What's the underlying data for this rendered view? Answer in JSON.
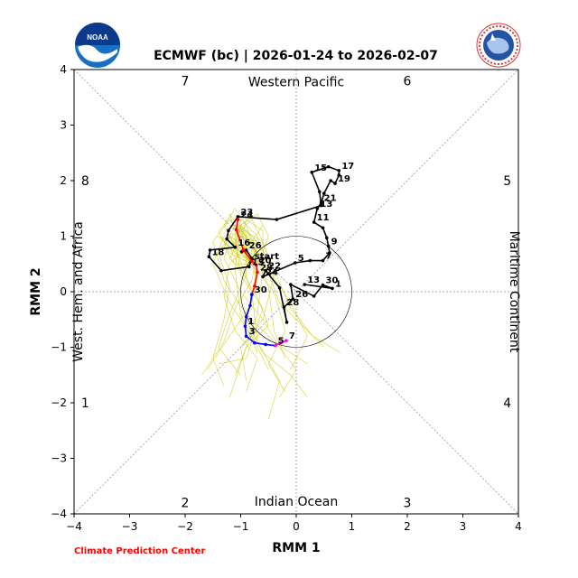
{
  "chart_data": {
    "type": "line",
    "title": "ECMWF (bc) | 2026-01-24 to 2026-02-07",
    "xlabel": "RMM 1",
    "ylabel": "RMM 2",
    "xlim": [
      -4,
      4
    ],
    "ylim": [
      -4,
      4
    ],
    "x_ticks": [
      "−4",
      "−3",
      "−2",
      "−1",
      "0",
      "1",
      "2",
      "3",
      "4"
    ],
    "y_ticks": [
      "−4",
      "−3",
      "−2",
      "−1",
      "0",
      "1",
      "2",
      "3",
      "4"
    ],
    "grid": "dotted diagonals and zero lines",
    "regions": {
      "top": "Western Pacific",
      "bottom": "Indian Ocean",
      "left": "West. Hem. and Africa",
      "right": "Maritime Continent"
    },
    "phases": [
      {
        "label": "7",
        "x": -2,
        "y": 3.8
      },
      {
        "label": "6",
        "x": 2,
        "y": 3.8
      },
      {
        "label": "8",
        "x": -3.8,
        "y": 2
      },
      {
        "label": "5",
        "x": 3.8,
        "y": 2
      },
      {
        "label": "1",
        "x": -3.8,
        "y": -2
      },
      {
        "label": "4",
        "x": 3.8,
        "y": -2
      },
      {
        "label": "2",
        "x": -2,
        "y": -3.8
      },
      {
        "label": "3",
        "x": 2,
        "y": -3.8
      }
    ],
    "series": [
      {
        "color": "#000000",
        "points": [
          {
            "x": 0.15,
            "y": 0.13,
            "label": "13"
          },
          {
            "x": 0.65,
            "y": 0.06,
            "label": "1"
          },
          {
            "x": 0.48,
            "y": 0.12,
            "label": "30"
          },
          {
            "x": 0.32,
            "y": -0.08
          },
          {
            "x": -0.1,
            "y": 0.13
          },
          {
            "x": -0.06,
            "y": -0.13,
            "label": "26"
          },
          {
            "x": -0.22,
            "y": -0.28,
            "label": "28"
          },
          {
            "x": -0.17,
            "y": -0.55
          },
          {
            "x": -0.3,
            "y": 0.07
          },
          {
            "x": -0.55,
            "y": 0.38,
            "label": "22"
          },
          {
            "x": -0.6,
            "y": 0.27,
            "label": "24"
          },
          {
            "x": -0.02,
            "y": 0.52,
            "label": "5"
          },
          {
            "x": 0.25,
            "y": 0.56
          },
          {
            "x": 0.48,
            "y": 0.56,
            "label": "7"
          },
          {
            "x": 0.6,
            "y": 0.7
          },
          {
            "x": 0.58,
            "y": 0.82,
            "label": "9"
          },
          {
            "x": 0.55,
            "y": 0.97
          },
          {
            "x": 0.48,
            "y": 1.15
          },
          {
            "x": 0.32,
            "y": 1.25,
            "label": "11"
          },
          {
            "x": 0.38,
            "y": 1.5,
            "label": "13"
          },
          {
            "x": 0.45,
            "y": 1.6,
            "label": "21"
          },
          {
            "x": 0.5,
            "y": 1.77
          },
          {
            "x": 0.62,
            "y": 2.0
          },
          {
            "x": 0.7,
            "y": 1.95,
            "label": "19"
          },
          {
            "x": 0.77,
            "y": 2.1
          },
          {
            "x": 0.77,
            "y": 2.18,
            "label": "17"
          },
          {
            "x": 0.58,
            "y": 2.25
          },
          {
            "x": 0.28,
            "y": 2.15,
            "label": "15"
          },
          {
            "x": 0.42,
            "y": 1.8
          },
          {
            "x": 0.45,
            "y": 1.55
          },
          {
            "x": -0.35,
            "y": 1.3
          },
          {
            "x": -1.05,
            "y": 1.35,
            "label": "23"
          },
          {
            "x": -1.22,
            "y": 1.1
          },
          {
            "x": -1.25,
            "y": 0.95
          },
          {
            "x": -1.1,
            "y": 0.8,
            "label": "16"
          },
          {
            "x": -1.55,
            "y": 0.75
          },
          {
            "x": -1.57,
            "y": 0.63,
            "label": "18"
          },
          {
            "x": -1.35,
            "y": 0.38
          },
          {
            "x": -0.85,
            "y": 0.45,
            "label": "15"
          },
          {
            "x": -0.8,
            "y": 0.6
          },
          {
            "x": -0.9,
            "y": 0.75,
            "label": "26"
          },
          {
            "x": -0.98,
            "y": 0.72
          }
        ]
      },
      {
        "color": "#ff0000",
        "points": [
          {
            "x": -1.05,
            "y": 1.3,
            "label": "24"
          },
          {
            "x": -1.08,
            "y": 1.12
          },
          {
            "x": -0.95,
            "y": 0.75
          },
          {
            "x": -0.8,
            "y": 0.55,
            "label": "start"
          },
          {
            "x": -0.72,
            "y": 0.48,
            "label": "20"
          },
          {
            "x": -0.7,
            "y": 0.35,
            "label": "28"
          },
          {
            "x": -0.75,
            "y": 0.1
          },
          {
            "x": -0.8,
            "y": -0.05,
            "label": "30"
          }
        ]
      },
      {
        "color": "#0000ff",
        "points": [
          {
            "x": -0.8,
            "y": -0.05
          },
          {
            "x": -0.83,
            "y": -0.25
          },
          {
            "x": -0.9,
            "y": -0.45
          },
          {
            "x": -0.92,
            "y": -0.62,
            "label": "1"
          },
          {
            "x": -0.9,
            "y": -0.8,
            "label": "3"
          },
          {
            "x": -0.75,
            "y": -0.92
          },
          {
            "x": -0.55,
            "y": -0.95
          },
          {
            "x": -0.38,
            "y": -0.97,
            "label": "5"
          }
        ]
      },
      {
        "color": "#ff00ff",
        "points": [
          {
            "x": -0.38,
            "y": -0.97
          },
          {
            "x": -0.28,
            "y": -0.92
          },
          {
            "x": -0.18,
            "y": -0.88,
            "label": "7"
          }
        ]
      }
    ],
    "ensemble_color": "#c8c800",
    "ensemble": [
      [
        [
          -0.8,
          0.5
        ],
        [
          -1.1,
          0.8
        ],
        [
          -1.3,
          1.2
        ],
        [
          -1.1,
          1.5
        ],
        [
          -0.9,
          1.2
        ],
        [
          -0.7,
          0.6
        ],
        [
          -0.8,
          -0.2
        ],
        [
          -1.2,
          -0.8
        ],
        [
          -1.6,
          -1.4
        ]
      ],
      [
        [
          -0.8,
          0.5
        ],
        [
          -1.0,
          0.9
        ],
        [
          -0.9,
          1.3
        ],
        [
          -0.6,
          1.1
        ],
        [
          -0.6,
          0.4
        ],
        [
          -0.7,
          -0.4
        ],
        [
          -0.9,
          -1.0
        ],
        [
          -1.1,
          -1.5
        ]
      ],
      [
        [
          -0.8,
          0.5
        ],
        [
          -1.2,
          0.7
        ],
        [
          -1.4,
          1.1
        ],
        [
          -1.2,
          1.3
        ],
        [
          -0.8,
          0.8
        ],
        [
          -0.5,
          0.1
        ],
        [
          -0.4,
          -0.7
        ],
        [
          -0.2,
          -1.2
        ]
      ],
      [
        [
          -0.8,
          0.5
        ],
        [
          -0.6,
          0.7
        ],
        [
          -0.5,
          1.0
        ],
        [
          -0.7,
          1.4
        ],
        [
          -1.0,
          1.2
        ],
        [
          -1.1,
          0.4
        ],
        [
          -1.0,
          -0.4
        ],
        [
          -0.7,
          -1.1
        ]
      ],
      [
        [
          -0.8,
          0.5
        ],
        [
          -1.0,
          0.6
        ],
        [
          -1.3,
          0.9
        ],
        [
          -1.0,
          1.1
        ],
        [
          -0.6,
          0.6
        ],
        [
          -0.3,
          -0.2
        ],
        [
          0.1,
          -0.6
        ],
        [
          0.5,
          -1.0
        ]
      ],
      [
        [
          -0.8,
          0.5
        ],
        [
          -0.9,
          0.8
        ],
        [
          -1.2,
          1.0
        ],
        [
          -1.4,
          0.7
        ],
        [
          -1.2,
          0.1
        ],
        [
          -1.3,
          -0.5
        ],
        [
          -1.5,
          -1.2
        ],
        [
          -1.3,
          -1.7
        ]
      ],
      [
        [
          -0.8,
          0.5
        ],
        [
          -0.7,
          0.9
        ],
        [
          -1.0,
          1.2
        ],
        [
          -0.9,
          0.6
        ],
        [
          -0.4,
          0.0
        ],
        [
          -0.2,
          -0.7
        ],
        [
          -0.5,
          -1.3
        ],
        [
          -0.2,
          -1.8
        ]
      ],
      [
        [
          -0.8,
          0.5
        ],
        [
          -1.1,
          0.5
        ],
        [
          -1.3,
          0.8
        ],
        [
          -1.1,
          1.2
        ],
        [
          -0.6,
          0.9
        ],
        [
          -0.4,
          0.3
        ],
        [
          -0.6,
          -0.5
        ],
        [
          -1.0,
          -1.0
        ],
        [
          -0.9,
          -1.6
        ]
      ],
      [
        [
          -0.8,
          0.5
        ],
        [
          -0.9,
          1.0
        ],
        [
          -1.2,
          1.3
        ],
        [
          -1.5,
          0.9
        ],
        [
          -1.3,
          0.2
        ],
        [
          -0.9,
          -0.4
        ],
        [
          -0.4,
          -0.9
        ],
        [
          0.2,
          -1.3
        ]
      ],
      [
        [
          -0.8,
          0.5
        ],
        [
          -0.6,
          0.9
        ],
        [
          -0.8,
          1.3
        ],
        [
          -1.1,
          1.0
        ],
        [
          -1.0,
          0.3
        ],
        [
          -0.6,
          -0.3
        ],
        [
          -0.9,
          -1.2
        ],
        [
          -1.4,
          -1.3
        ]
      ],
      [
        [
          -0.8,
          0.5
        ],
        [
          -1.0,
          0.7
        ],
        [
          -1.2,
          1.0
        ],
        [
          -0.9,
          0.8
        ],
        [
          -0.7,
          0.2
        ],
        [
          -0.9,
          -0.5
        ],
        [
          -0.6,
          -1.1
        ],
        [
          -0.1,
          -1.5
        ],
        [
          0.2,
          -1.9
        ]
      ],
      [
        [
          -0.8,
          0.5
        ],
        [
          -0.7,
          0.8
        ],
        [
          -0.9,
          1.1
        ],
        [
          -1.3,
          1.0
        ],
        [
          -1.5,
          0.5
        ],
        [
          -1.2,
          -0.2
        ],
        [
          -0.8,
          -0.8
        ],
        [
          -0.5,
          -1.4
        ]
      ],
      [
        [
          -0.8,
          0.5
        ],
        [
          -1.0,
          0.4
        ],
        [
          -1.2,
          0.6
        ],
        [
          -1.0,
          1.0
        ],
        [
          -0.7,
          0.9
        ],
        [
          -0.4,
          0.4
        ],
        [
          -0.1,
          -0.3
        ],
        [
          0.3,
          -0.8
        ],
        [
          0.8,
          -1.1
        ]
      ],
      [
        [
          -0.8,
          0.5
        ],
        [
          -0.9,
          0.7
        ],
        [
          -1.1,
          1.1
        ],
        [
          -1.2,
          1.4
        ],
        [
          -0.9,
          1.0
        ],
        [
          -0.9,
          0.3
        ],
        [
          -1.2,
          -0.4
        ],
        [
          -1.4,
          -1.0
        ],
        [
          -1.0,
          -1.5
        ]
      ],
      [
        [
          -0.8,
          0.5
        ],
        [
          -0.6,
          0.6
        ],
        [
          -0.7,
          1.0
        ],
        [
          -1.0,
          1.3
        ],
        [
          -1.1,
          0.8
        ],
        [
          -0.8,
          0.0
        ],
        [
          -0.7,
          -0.9
        ],
        [
          -0.3,
          -1.6
        ],
        [
          -0.5,
          -2.3
        ]
      ],
      [
        [
          -0.8,
          0.5
        ],
        [
          -1.1,
          0.9
        ],
        [
          -1.0,
          1.2
        ],
        [
          -0.7,
          0.7
        ],
        [
          -0.8,
          0.2
        ],
        [
          -1.1,
          -0.3
        ],
        [
          -1.3,
          -0.9
        ],
        [
          -1.7,
          -1.5
        ]
      ],
      [
        [
          -0.8,
          0.5
        ],
        [
          -0.9,
          0.6
        ],
        [
          -1.2,
          0.9
        ],
        [
          -1.3,
          0.6
        ],
        [
          -1.0,
          0.0
        ],
        [
          -0.6,
          -0.5
        ],
        [
          -0.3,
          -1.0
        ],
        [
          0.0,
          -1.4
        ],
        [
          -0.3,
          -1.9
        ]
      ],
      [
        [
          -0.8,
          0.5
        ],
        [
          -0.8,
          0.9
        ],
        [
          -0.6,
          1.2
        ],
        [
          -0.8,
          0.9
        ],
        [
          -1.2,
          0.5
        ],
        [
          -1.3,
          -0.1
        ],
        [
          -1.1,
          -0.7
        ],
        [
          -0.7,
          -1.2
        ],
        [
          -0.9,
          -1.8
        ]
      ],
      [
        [
          -0.8,
          0.5
        ],
        [
          -1.0,
          0.8
        ],
        [
          -1.4,
          1.0
        ],
        [
          -1.1,
          0.7
        ],
        [
          -0.5,
          0.4
        ],
        [
          -0.1,
          -0.2
        ],
        [
          0.2,
          -0.8
        ],
        [
          -0.1,
          -1.4
        ]
      ],
      [
        [
          -0.8,
          0.5
        ],
        [
          -0.7,
          0.7
        ],
        [
          -1.0,
          1.0
        ],
        [
          -1.2,
          0.8
        ],
        [
          -1.0,
          0.4
        ],
        [
          -0.7,
          -0.1
        ],
        [
          -0.5,
          -0.6
        ],
        [
          -0.9,
          -1.0
        ],
        [
          -1.2,
          -1.9
        ]
      ]
    ]
  },
  "logos": {
    "noaa": "NOAA",
    "nws": "NATIONAL WEATHER SERVICE"
  },
  "credit": "Climate Prediction Center"
}
